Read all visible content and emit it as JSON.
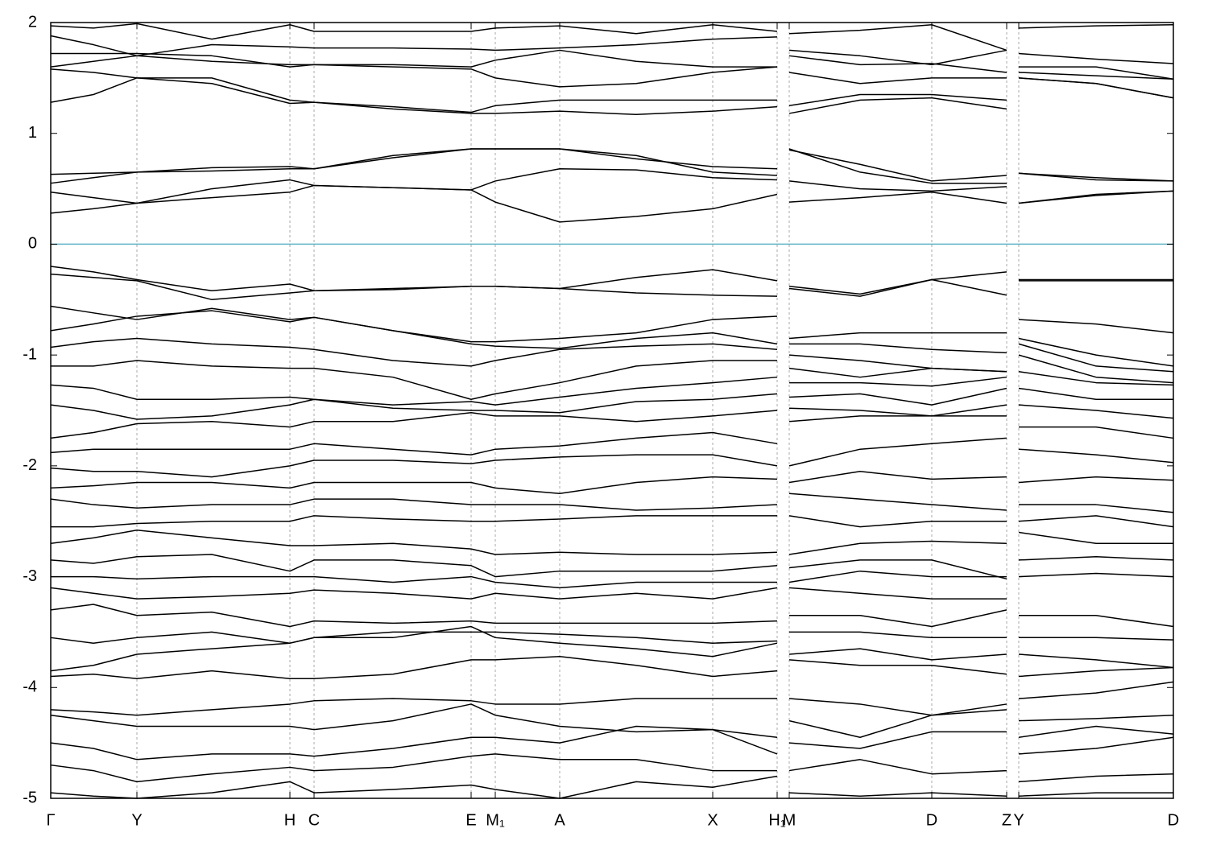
{
  "chart_data": {
    "type": "line",
    "color": "#000000",
    "grid": "x",
    "reference_line": 0,
    "reference_color": "#5fb4c8",
    "xlim": [
      0,
      1394
    ],
    "xticks": [
      {
        "value": 0,
        "label": "Γ"
      },
      {
        "value": 107,
        "label": "Y"
      },
      {
        "value": 297,
        "label": "H"
      },
      {
        "value": 327,
        "label": "C"
      },
      {
        "value": 522,
        "label": "E"
      },
      {
        "value": 552,
        "label": "M₁"
      },
      {
        "value": 632,
        "label": "A"
      },
      {
        "value": 822,
        "label": "X"
      },
      {
        "value": 902,
        "label": "H₁"
      },
      {
        "value": 917,
        "label": "M"
      },
      {
        "value": 1094,
        "label": "D"
      },
      {
        "value": 1187,
        "label": "Z"
      },
      {
        "value": 1202,
        "label": "Y"
      },
      {
        "value": 1394,
        "label": "D"
      }
    ],
    "ylim": [
      -5,
      2
    ],
    "yticks": [
      2,
      1,
      0,
      -1,
      -2,
      -3,
      -4,
      -5
    ],
    "x": [
      0,
      53,
      107,
      200,
      297,
      327,
      425,
      522,
      552,
      632,
      727,
      822,
      902,
      909.5,
      917,
      1005,
      1094,
      1187,
      1194.5,
      1202,
      1298,
      1394
    ],
    "series": [
      {
        "values": [
          0.28,
          0.32,
          0.37,
          0.42,
          0.47,
          0.53,
          0.51,
          0.49,
          0.38,
          0.2,
          0.25,
          0.32,
          0.45,
          null,
          0.38,
          0.42,
          0.47,
          0.37,
          null,
          0.37,
          0.44,
          0.48
        ]
      },
      {
        "values": [
          0.47,
          0.42,
          0.37,
          0.5,
          0.58,
          0.53,
          0.51,
          0.49,
          0.57,
          0.68,
          0.67,
          0.6,
          0.58,
          null,
          0.57,
          0.5,
          0.48,
          0.52,
          null,
          0.37,
          0.45,
          0.48
        ]
      },
      {
        "values": [
          0.63,
          0.64,
          0.65,
          0.69,
          0.7,
          0.68,
          0.8,
          0.86,
          0.86,
          0.86,
          0.8,
          0.65,
          0.62,
          null,
          0.85,
          0.72,
          0.57,
          0.62,
          null,
          0.64,
          0.6,
          0.57
        ]
      },
      {
        "values": [
          0.55,
          0.6,
          0.65,
          0.66,
          0.68,
          0.68,
          0.78,
          0.86,
          0.86,
          0.86,
          0.77,
          0.7,
          0.68,
          null,
          0.86,
          0.65,
          0.55,
          0.55,
          null,
          0.64,
          0.58,
          0.57
        ]
      },
      {
        "values": [
          1.28,
          1.35,
          1.5,
          1.45,
          1.27,
          1.28,
          1.22,
          1.18,
          1.18,
          1.2,
          1.17,
          1.2,
          1.24,
          null,
          1.18,
          1.3,
          1.32,
          1.22,
          null,
          1.5,
          1.45,
          1.32
        ]
      },
      {
        "values": [
          1.58,
          1.55,
          1.5,
          1.5,
          1.3,
          1.28,
          1.24,
          1.19,
          1.25,
          1.3,
          1.3,
          1.3,
          1.3,
          null,
          1.25,
          1.35,
          1.35,
          1.3,
          null,
          1.5,
          1.45,
          1.32
        ]
      },
      {
        "values": [
          1.6,
          1.65,
          1.7,
          1.65,
          1.62,
          1.62,
          1.6,
          1.58,
          1.5,
          1.42,
          1.45,
          1.55,
          1.6,
          null,
          1.55,
          1.45,
          1.5,
          1.5,
          null,
          1.55,
          1.52,
          1.49
        ]
      },
      {
        "values": [
          1.72,
          1.72,
          1.72,
          1.7,
          1.6,
          1.62,
          1.62,
          1.6,
          1.66,
          1.75,
          1.65,
          1.6,
          1.6,
          null,
          1.7,
          1.62,
          1.63,
          1.55,
          null,
          1.6,
          1.6,
          1.49
        ]
      },
      {
        "values": [
          1.88,
          1.8,
          1.7,
          1.8,
          1.78,
          1.77,
          1.77,
          1.76,
          1.75,
          1.77,
          1.8,
          1.85,
          1.87,
          null,
          1.75,
          1.7,
          1.62,
          1.75,
          null,
          1.72,
          1.67,
          1.63
        ]
      },
      {
        "values": [
          1.97,
          1.95,
          1.99,
          1.85,
          1.98,
          1.92,
          1.92,
          1.92,
          1.95,
          1.97,
          1.9,
          1.98,
          1.92,
          null,
          1.9,
          1.93,
          1.98,
          1.75,
          null,
          1.95,
          1.97,
          1.98
        ]
      },
      {
        "values": [
          -0.2,
          -0.25,
          -0.32,
          -0.42,
          -0.36,
          -0.42,
          -0.4,
          -0.38,
          -0.38,
          -0.4,
          -0.3,
          -0.23,
          -0.33,
          null,
          -0.38,
          -0.45,
          -0.32,
          -0.25,
          null,
          -0.32,
          -0.32,
          -0.32
        ]
      },
      {
        "values": [
          -0.27,
          -0.3,
          -0.33,
          -0.5,
          -0.44,
          -0.42,
          -0.41,
          -0.38,
          -0.38,
          -0.4,
          -0.44,
          -0.46,
          -0.47,
          null,
          -0.4,
          -0.47,
          -0.32,
          -0.46,
          null,
          -0.33,
          -0.33,
          -0.33
        ]
      },
      {
        "values": [
          -0.56,
          -0.62,
          -0.68,
          -0.58,
          -0.68,
          -0.66,
          -0.78,
          -0.88,
          -0.88,
          -0.85,
          -0.8,
          -0.68,
          -0.65,
          null,
          -0.85,
          -0.8,
          -0.8,
          -0.8,
          null,
          -0.68,
          -0.72,
          -0.8
        ]
      },
      {
        "values": [
          -0.78,
          -0.72,
          -0.65,
          -0.6,
          -0.7,
          -0.66,
          -0.78,
          -0.9,
          -0.92,
          -0.94,
          -0.85,
          -0.8,
          -0.9,
          null,
          -0.9,
          -0.9,
          -0.95,
          -0.98,
          null,
          -0.85,
          -1.0,
          -1.1
        ]
      },
      {
        "values": [
          -0.93,
          -0.88,
          -0.85,
          -0.9,
          -0.93,
          -0.95,
          -1.05,
          -1.1,
          -1.05,
          -0.95,
          -0.92,
          -0.9,
          -0.95,
          null,
          -1.0,
          -1.05,
          -1.12,
          -1.15,
          null,
          -0.9,
          -1.1,
          -1.15
        ]
      },
      {
        "values": [
          -1.1,
          -1.1,
          -1.05,
          -1.1,
          -1.12,
          -1.12,
          -1.2,
          -1.4,
          -1.35,
          -1.25,
          -1.1,
          -1.05,
          -1.05,
          null,
          -1.12,
          -1.2,
          -1.12,
          -1.15,
          null,
          -1.0,
          -1.2,
          -1.25
        ]
      },
      {
        "values": [
          -1.27,
          -1.3,
          -1.4,
          -1.4,
          -1.38,
          -1.4,
          -1.45,
          -1.42,
          -1.45,
          -1.38,
          -1.3,
          -1.25,
          -1.2,
          null,
          -1.25,
          -1.25,
          -1.28,
          -1.2,
          null,
          -1.15,
          -1.25,
          -1.27
        ]
      },
      {
        "values": [
          -1.45,
          -1.5,
          -1.58,
          -1.55,
          -1.45,
          -1.4,
          -1.48,
          -1.5,
          -1.5,
          -1.52,
          -1.42,
          -1.4,
          -1.35,
          null,
          -1.38,
          -1.35,
          -1.45,
          -1.3,
          null,
          -1.3,
          -1.4,
          -1.4
        ]
      },
      {
        "values": [
          -1.75,
          -1.7,
          -1.62,
          -1.6,
          -1.65,
          -1.6,
          -1.6,
          -1.52,
          -1.55,
          -1.55,
          -1.6,
          -1.55,
          -1.5,
          null,
          -1.48,
          -1.5,
          -1.55,
          -1.45,
          null,
          -1.45,
          -1.5,
          -1.57
        ]
      },
      {
        "values": [
          -1.88,
          -1.85,
          -1.85,
          -1.85,
          -1.85,
          -1.8,
          -1.85,
          -1.9,
          -1.85,
          -1.82,
          -1.75,
          -1.7,
          -1.8,
          null,
          -1.6,
          -1.55,
          -1.55,
          -1.55,
          null,
          -1.65,
          -1.65,
          -1.75
        ]
      },
      {
        "values": [
          -2.02,
          -2.05,
          -2.05,
          -2.1,
          -2.0,
          -1.95,
          -1.95,
          -1.98,
          -1.95,
          -1.92,
          -1.9,
          -1.9,
          -2.0,
          null,
          -2.0,
          -1.85,
          -1.8,
          -1.75,
          null,
          -1.85,
          -1.9,
          -1.97
        ]
      },
      {
        "values": [
          -2.2,
          -2.18,
          -2.15,
          -2.15,
          -2.2,
          -2.15,
          -2.15,
          -2.15,
          -2.2,
          -2.25,
          -2.15,
          -2.1,
          -2.12,
          null,
          -2.15,
          -2.05,
          -2.12,
          -2.1,
          null,
          -2.15,
          -2.1,
          -2.13
        ]
      },
      {
        "values": [
          -2.3,
          -2.35,
          -2.38,
          -2.35,
          -2.35,
          -2.3,
          -2.3,
          -2.35,
          -2.35,
          -2.35,
          -2.4,
          -2.38,
          -2.35,
          null,
          -2.25,
          -2.3,
          -2.35,
          -2.4,
          null,
          -2.35,
          -2.35,
          -2.42
        ]
      },
      {
        "values": [
          -2.55,
          -2.55,
          -2.52,
          -2.5,
          -2.5,
          -2.45,
          -2.48,
          -2.5,
          -2.5,
          -2.48,
          -2.45,
          -2.45,
          -2.45,
          null,
          -2.45,
          -2.55,
          -2.5,
          -2.5,
          null,
          -2.5,
          -2.45,
          -2.55
        ]
      },
      {
        "values": [
          -2.7,
          -2.65,
          -2.58,
          -2.65,
          -2.72,
          -2.72,
          -2.7,
          -2.75,
          -2.8,
          -2.78,
          -2.8,
          -2.8,
          -2.78,
          null,
          -2.8,
          -2.7,
          -2.68,
          -2.7,
          null,
          -2.6,
          -2.7,
          -2.7
        ]
      },
      {
        "values": [
          -2.85,
          -2.88,
          -2.82,
          -2.8,
          -2.95,
          -2.85,
          -2.85,
          -2.9,
          -3.0,
          -2.95,
          -2.95,
          -2.95,
          -2.9,
          null,
          -2.92,
          -2.85,
          -2.85,
          -3.02,
          null,
          -2.85,
          -2.82,
          -2.85
        ]
      },
      {
        "values": [
          -3.0,
          -3.0,
          -3.02,
          -3.0,
          -3.0,
          -3.0,
          -3.05,
          -3.0,
          -3.05,
          -3.1,
          -3.05,
          -3.05,
          -3.05,
          null,
          -3.05,
          -2.95,
          -3.0,
          -3.0,
          null,
          -3.0,
          -2.97,
          -3.0
        ]
      },
      {
        "values": [
          -3.1,
          -3.15,
          -3.2,
          -3.18,
          -3.15,
          -3.12,
          -3.15,
          -3.2,
          -3.15,
          -3.2,
          -3.15,
          -3.2,
          -3.1,
          null,
          -3.1,
          -3.15,
          -3.2,
          -3.2,
          null,
          -3.35,
          -3.35,
          -3.45
        ]
      },
      {
        "values": [
          -3.3,
          -3.25,
          -3.35,
          -3.32,
          -3.45,
          -3.4,
          -3.42,
          -3.4,
          -3.42,
          -3.42,
          -3.42,
          -3.42,
          -3.4,
          null,
          -3.35,
          -3.35,
          -3.45,
          -3.3,
          null,
          -3.55,
          -3.55,
          -3.57
        ]
      },
      {
        "values": [
          -3.55,
          -3.6,
          -3.55,
          -3.5,
          -3.6,
          -3.55,
          -3.5,
          -3.5,
          -3.5,
          -3.52,
          -3.55,
          -3.6,
          -3.58,
          null,
          -3.5,
          -3.5,
          -3.55,
          -3.55,
          null,
          -3.7,
          -3.75,
          -3.82
        ]
      },
      {
        "values": [
          -3.85,
          -3.8,
          -3.7,
          -3.65,
          -3.6,
          -3.55,
          -3.55,
          -3.45,
          -3.55,
          -3.6,
          -3.65,
          -3.72,
          -3.6,
          null,
          -3.7,
          -3.65,
          -3.75,
          -3.7,
          null,
          -3.9,
          -3.85,
          -3.82
        ]
      },
      {
        "values": [
          -3.9,
          -3.88,
          -3.92,
          -3.85,
          -3.92,
          -3.92,
          -3.88,
          -3.75,
          -3.75,
          -3.72,
          -3.8,
          -3.9,
          -3.85,
          null,
          -3.75,
          -3.8,
          -3.8,
          -3.88,
          null,
          -4.1,
          -4.05,
          -3.95
        ]
      },
      {
        "values": [
          -4.2,
          -4.22,
          -4.25,
          -4.2,
          -4.15,
          -4.12,
          -4.1,
          -4.12,
          -4.15,
          -4.15,
          -4.1,
          -4.1,
          -4.1,
          null,
          -4.1,
          -4.15,
          -4.25,
          -4.2,
          null,
          -4.3,
          -4.28,
          -4.25
        ]
      },
      {
        "values": [
          -4.25,
          -4.3,
          -4.35,
          -4.35,
          -4.35,
          -4.38,
          -4.3,
          -4.15,
          -4.25,
          -4.35,
          -4.4,
          -4.38,
          -4.45,
          null,
          -4.3,
          -4.45,
          -4.25,
          -4.15,
          null,
          -4.45,
          -4.35,
          -4.42
        ]
      },
      {
        "values": [
          -4.5,
          -4.55,
          -4.65,
          -4.6,
          -4.6,
          -4.62,
          -4.55,
          -4.45,
          -4.45,
          -4.5,
          -4.35,
          -4.38,
          -4.6,
          null,
          -4.5,
          -4.55,
          -4.4,
          -4.4,
          null,
          -4.6,
          -4.55,
          -4.45
        ]
      },
      {
        "values": [
          -4.7,
          -4.75,
          -4.85,
          -4.78,
          -4.72,
          -4.75,
          -4.72,
          -4.62,
          -4.6,
          -4.65,
          -4.65,
          -4.75,
          -4.75,
          null,
          -4.75,
          -4.65,
          -4.78,
          -4.75,
          null,
          -4.85,
          -4.8,
          -4.78
        ]
      },
      {
        "values": [
          -4.95,
          -4.98,
          -5.0,
          -4.95,
          -4.85,
          -4.95,
          -4.92,
          -4.88,
          -4.92,
          -5.0,
          -4.85,
          -4.9,
          -4.8,
          null,
          -4.95,
          -4.98,
          -4.95,
          -4.98,
          null,
          -4.98,
          -4.95,
          -4.95
        ]
      }
    ]
  }
}
